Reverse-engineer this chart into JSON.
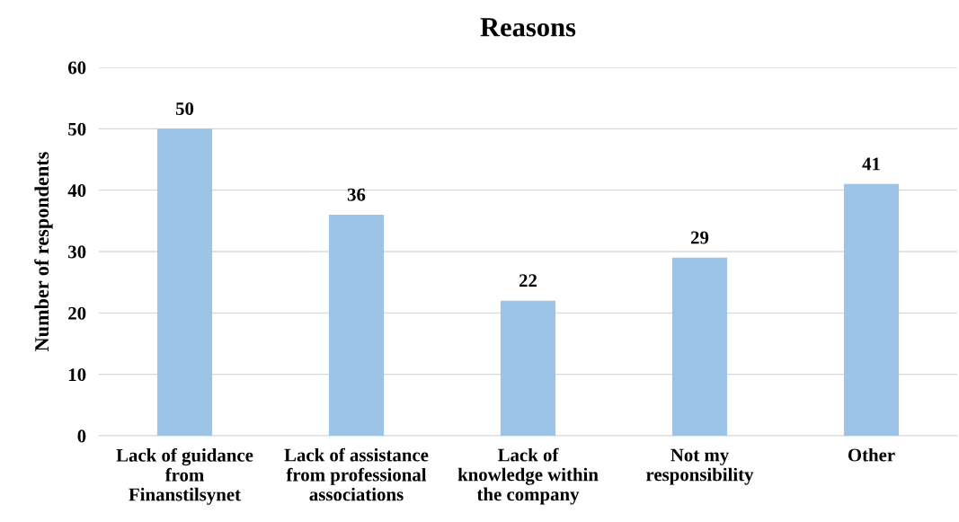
{
  "chart_data": {
    "type": "bar",
    "title": "Reasons",
    "ylabel": "Number of respondents",
    "categories": [
      "Lack of guidance\nfrom\nFinanstilsynet",
      "Lack of assistance\nfrom professional\nassociations",
      "Lack of\nknowledge within\nthe company",
      "Not my\nresponsibility",
      "Other"
    ],
    "values": [
      50,
      36,
      22,
      29,
      41
    ],
    "color": "#9dc3e6",
    "ylim": [
      0,
      60
    ],
    "yticks": [
      0,
      10,
      20,
      30,
      40,
      50,
      60
    ],
    "grid": "y",
    "data_labels": true,
    "legend": false
  }
}
